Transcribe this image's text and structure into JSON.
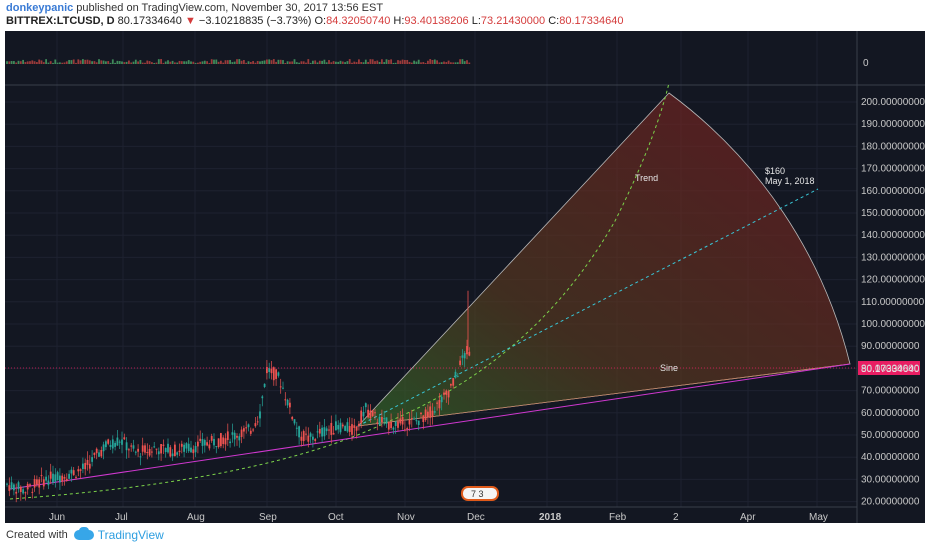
{
  "header": {
    "user": "donkeypanic",
    "published": " published on TradingView.com, November 30, 2017 13:56 EST"
  },
  "ticker": {
    "symbol": "BITTREX:LTCUSD, D",
    "last": "80.17334640",
    "change_arrow": "▼",
    "change": "−3.10218835 (−3.73%)",
    "o_label": "O:",
    "o": "84.32050740",
    "h_label": "H:",
    "h": "93.40138206",
    "l_label": "L:",
    "l": "73.21430000",
    "c_label": "C:",
    "c": "80.17334640"
  },
  "colors": {
    "background": "#131722",
    "up": "#26a69a",
    "down": "#ef5350",
    "price_line": "#e91e63",
    "trend_curve": "#7cd34a",
    "dashed_line": "#39c6d6",
    "sine_line": "#d038d0",
    "fan_fill": "#8b1c22"
  },
  "volume_pane": {
    "axis_label": "0"
  },
  "price_axis": {
    "ticks": [
      "200.00000000",
      "190.00000000",
      "180.00000000",
      "170.00000000",
      "160.00000000",
      "150.00000000",
      "140.00000000",
      "130.00000000",
      "120.00000000",
      "110.00000000",
      "100.00000000",
      "90.00000000",
      "80.00000000",
      "70.00000000",
      "60.00000000",
      "50.00000000",
      "40.00000000",
      "30.00000000",
      "20.00000000"
    ],
    "current_price_label": "80.17334640"
  },
  "time_axis": {
    "ticks": [
      "Jun",
      "Jul",
      "Aug",
      "Sep",
      "Oct",
      "Nov",
      "Dec",
      "2018",
      "Feb",
      "2",
      "Apr",
      "May"
    ]
  },
  "annotations": {
    "trend_label": "Trend",
    "sine_label": "Sine",
    "target_price": "$160",
    "target_date": "May 1, 2018",
    "badge": "7 3"
  },
  "footer": {
    "created_with": "Created with",
    "brand": "TradingView"
  }
}
